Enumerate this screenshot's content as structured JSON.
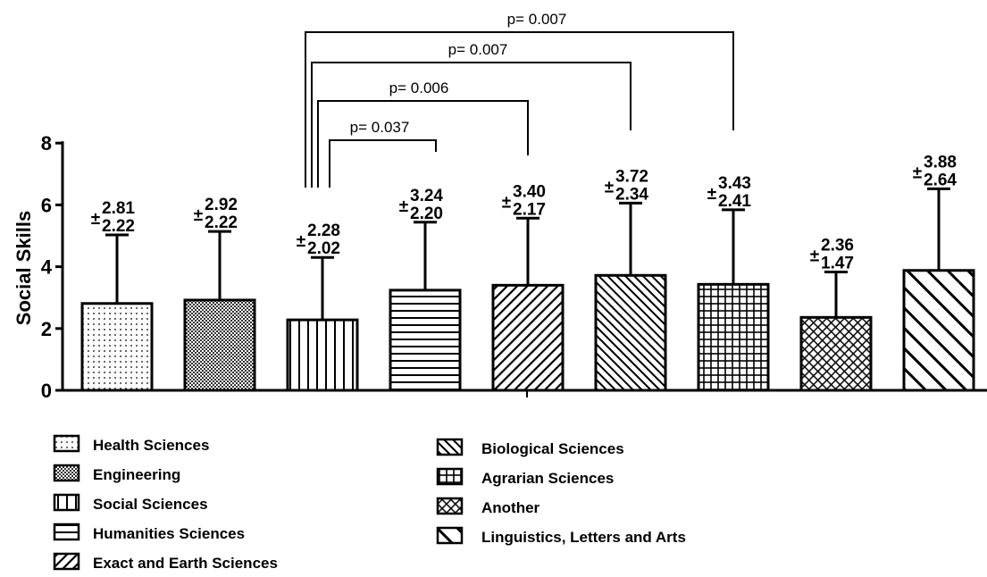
{
  "chart_data": {
    "type": "bar",
    "ylabel": "Social Skills",
    "ylim": [
      0,
      8
    ],
    "yticks": [
      "0",
      "2",
      "4",
      "6",
      "8"
    ],
    "categories": [
      "Health Sciences",
      "Engineering",
      "Social Sciences",
      "Humanities Sciences",
      "Exact and Earth Sciences",
      "Biological Sciences",
      "Agrarian Sciences",
      "Another",
      "Linguistics, Letters and Arts"
    ],
    "values": [
      2.81,
      2.92,
      2.28,
      3.24,
      3.4,
      3.72,
      3.43,
      2.36,
      3.88
    ],
    "errors": [
      2.22,
      2.22,
      2.02,
      2.2,
      2.17,
      2.34,
      2.41,
      1.47,
      2.64
    ],
    "value_labels": [
      "2.81",
      "2.92",
      "2.28",
      "3.24",
      "3.40",
      "3.72",
      "3.43",
      "2.36",
      "3.88"
    ],
    "error_labels": [
      "2.22",
      "2.22",
      "2.02",
      "2.20",
      "2.17",
      "2.34",
      "2.41",
      "1.47",
      "2.64"
    ],
    "pm_symbol": "±",
    "patterns": [
      "dots",
      "dense-dots",
      "vertical",
      "horizontal",
      "diag-right",
      "diag-right-dense",
      "grid",
      "crosshatch",
      "diag-left"
    ],
    "comparisons": [
      {
        "from": "Social Sciences",
        "to": "Humanities Sciences",
        "label": "p= 0.037"
      },
      {
        "from": "Social Sciences",
        "to": "Exact and Earth Sciences",
        "label": "p= 0.006"
      },
      {
        "from": "Social Sciences",
        "to": "Biological Sciences",
        "label": "p= 0.007"
      },
      {
        "from": "Social Sciences",
        "to": "Agrarian Sciences",
        "label": "p= 0.007"
      }
    ],
    "legend": {
      "placement": "bottom",
      "column1": [
        "Health Sciences",
        "Engineering",
        "Social Sciences",
        "Humanities Sciences",
        "Exact and Earth Sciences"
      ],
      "column2": [
        "Biological Sciences",
        "Agrarian Sciences",
        "Another",
        "Linguistics, Letters and Arts"
      ]
    }
  }
}
